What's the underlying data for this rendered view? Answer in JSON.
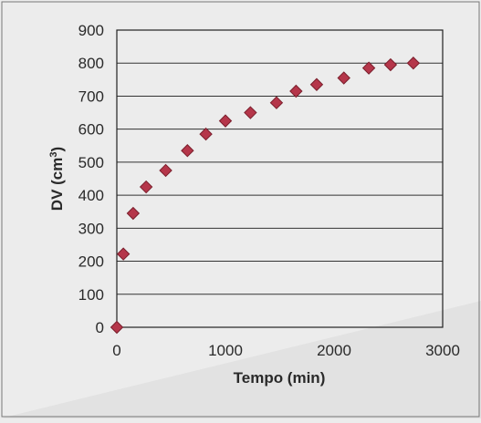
{
  "chart_data": {
    "type": "scatter",
    "title": "",
    "xlabel": "Tempo (min)",
    "ylabel_main": "DV (cm",
    "ylabel_sup": "3",
    "ylabel_close": ")",
    "xlim": [
      0,
      3000
    ],
    "ylim": [
      0,
      900
    ],
    "xticks": [
      "0",
      "1000",
      "2000",
      "3000"
    ],
    "xtick_values": [
      0,
      1000,
      2000,
      3000
    ],
    "yticks": [
      "0",
      "100",
      "200",
      "300",
      "400",
      "500",
      "600",
      "700",
      "800",
      "900"
    ],
    "ytick_values": [
      0,
      100,
      200,
      300,
      400,
      500,
      600,
      700,
      800,
      900
    ],
    "grid": "horizontal",
    "marker_color": "#b5364a",
    "marker_edge": "#7a1f2c",
    "series": [
      {
        "x": [
          0,
          60,
          150,
          270,
          450,
          650,
          820,
          1000,
          1230,
          1470,
          1650,
          1840,
          2090,
          2320,
          2520,
          2730
        ],
        "y": [
          0,
          222,
          345,
          425,
          475,
          535,
          585,
          625,
          650,
          680,
          715,
          735,
          755,
          785,
          795,
          800
        ]
      }
    ]
  }
}
